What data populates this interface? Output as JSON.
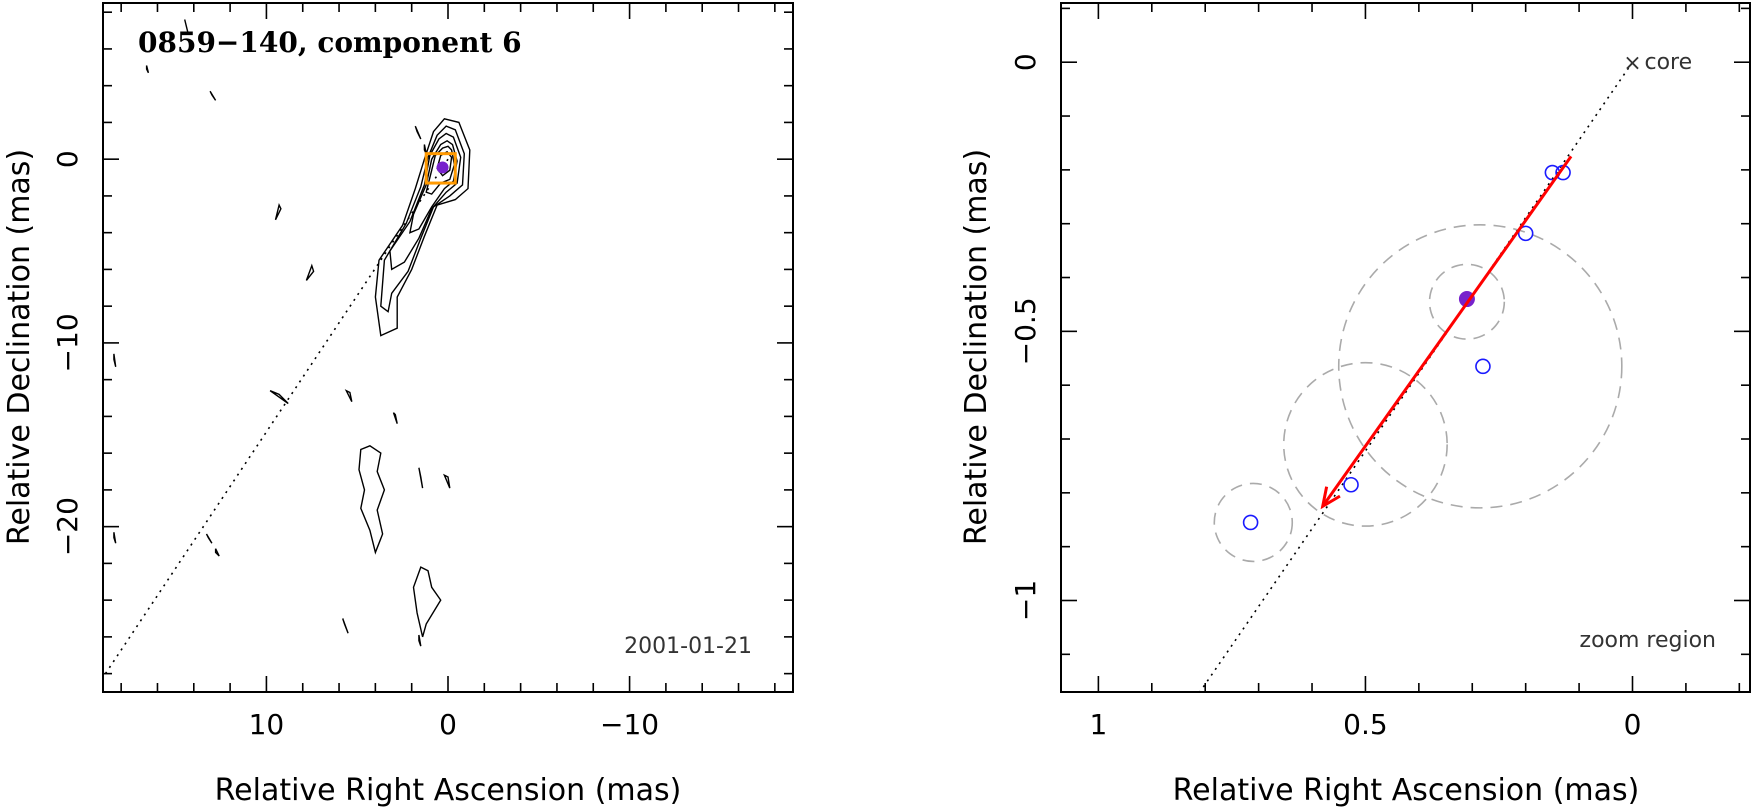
{
  "chart_data": [
    {
      "type": "contour",
      "title": "0859−140, component 6",
      "xlabel": "Relative Right Ascension (mas)",
      "ylabel": "Relative Declination (mas)",
      "xlim": [
        19,
        -19
      ],
      "ylim": [
        -29,
        8.5
      ],
      "xticks": [
        10,
        0,
        -10
      ],
      "xtick_labels": [
        "10",
        "0",
        "−10"
      ],
      "yticks": [
        0,
        -10,
        -20
      ],
      "ytick_labels": [
        "0",
        "−10",
        "−20"
      ],
      "date": "2001-01-21",
      "jet_axis_line": {
        "from": [
          0,
          0
        ],
        "to": [
          19,
          -28.2
        ]
      },
      "zoom_box": {
        "x": [
          1.2,
          -0.4
        ],
        "y": [
          -1.3,
          0.3
        ],
        "color": "#ff9900"
      },
      "marker": {
        "x": 0.3,
        "y": -0.45,
        "color": "#7722cc"
      },
      "contours": [
        [
          [
            0.2,
            2.2
          ],
          [
            -0.6,
            2.0
          ],
          [
            -1.2,
            0.5
          ],
          [
            -1.1,
            -1.6
          ],
          [
            -0.4,
            -2.2
          ],
          [
            0.6,
            -2.5
          ],
          [
            1.3,
            -4.2
          ],
          [
            2.0,
            -6.0
          ],
          [
            2.8,
            -7.5
          ],
          [
            2.8,
            -9.2
          ],
          [
            3.7,
            -9.6
          ],
          [
            4.0,
            -7.5
          ],
          [
            3.8,
            -5.5
          ],
          [
            2.5,
            -3.6
          ],
          [
            1.8,
            -1.6
          ],
          [
            1.3,
            0.0
          ],
          [
            0.8,
            1.5
          ],
          [
            0.2,
            2.2
          ]
        ],
        [
          [
            0.1,
            1.8
          ],
          [
            -0.4,
            1.6
          ],
          [
            -0.9,
            0.3
          ],
          [
            -0.8,
            -1.4
          ],
          [
            -0.1,
            -2.0
          ],
          [
            0.8,
            -2.6
          ],
          [
            1.5,
            -4.3
          ],
          [
            2.2,
            -6.1
          ],
          [
            3.1,
            -7.3
          ],
          [
            3.3,
            -8.3
          ],
          [
            3.7,
            -8.0
          ],
          [
            3.5,
            -5.5
          ],
          [
            2.3,
            -3.5
          ],
          [
            1.5,
            -1.5
          ],
          [
            1.1,
            0.1
          ],
          [
            0.6,
            1.3
          ],
          [
            0.1,
            1.8
          ]
        ],
        [
          [
            0.1,
            1.4
          ],
          [
            -0.3,
            1.2
          ],
          [
            -0.7,
            0.1
          ],
          [
            -0.5,
            -1.3
          ],
          [
            0.1,
            -1.8
          ],
          [
            0.9,
            -2.7
          ],
          [
            1.6,
            -4.3
          ],
          [
            2.4,
            -5.6
          ],
          [
            3.1,
            -6.0
          ],
          [
            3.2,
            -5.0
          ],
          [
            2.1,
            -3.4
          ],
          [
            1.3,
            -1.4
          ],
          [
            1.0,
            0.2
          ],
          [
            0.5,
            1.1
          ],
          [
            0.1,
            1.4
          ]
        ],
        [
          [
            0.05,
            1.0
          ],
          [
            -0.25,
            0.8
          ],
          [
            -0.5,
            -0.1
          ],
          [
            -0.3,
            -1.2
          ],
          [
            0.2,
            -1.6
          ],
          [
            0.9,
            -2.6
          ],
          [
            1.6,
            -3.8
          ],
          [
            2.1,
            -4.0
          ],
          [
            1.9,
            -3.0
          ],
          [
            1.2,
            -1.4
          ],
          [
            0.9,
            0.0
          ],
          [
            0.4,
            0.8
          ],
          [
            0.05,
            1.0
          ]
        ],
        [
          [
            0.0,
            0.7
          ],
          [
            -0.2,
            0.5
          ],
          [
            -0.35,
            -0.3
          ],
          [
            -0.1,
            -1.1
          ],
          [
            0.4,
            -1.3
          ],
          [
            0.9,
            -1.9
          ],
          [
            1.2,
            -1.8
          ],
          [
            0.9,
            -0.6
          ],
          [
            0.7,
            0.2
          ],
          [
            0.3,
            0.6
          ],
          [
            0.0,
            0.7
          ]
        ],
        [
          [
            0.05,
            0.4
          ],
          [
            -0.2,
            0.1
          ],
          [
            -0.1,
            -0.6
          ],
          [
            0.3,
            -0.9
          ],
          [
            0.6,
            -0.5
          ],
          [
            0.4,
            0.2
          ],
          [
            0.05,
            0.4
          ]
        ],
        [
          [
            4.8,
            -15.8
          ],
          [
            4.9,
            -16.9
          ],
          [
            4.6,
            -18.0
          ],
          [
            4.8,
            -19.0
          ],
          [
            4.3,
            -20.2
          ],
          [
            4.0,
            -21.4
          ],
          [
            3.6,
            -20.4
          ],
          [
            3.9,
            -19.1
          ],
          [
            3.5,
            -18.0
          ],
          [
            3.9,
            -17.0
          ],
          [
            3.7,
            -16.0
          ],
          [
            4.3,
            -15.6
          ],
          [
            4.8,
            -15.8
          ]
        ],
        [
          [
            1.5,
            -22.2
          ],
          [
            1.9,
            -23.3
          ],
          [
            1.7,
            -24.7
          ],
          [
            1.4,
            -26.0
          ],
          [
            1.2,
            -25.3
          ],
          [
            0.4,
            -24.0
          ],
          [
            0.9,
            -23.3
          ],
          [
            1.1,
            -22.4
          ],
          [
            1.5,
            -22.2
          ]
        ],
        [
          [
            1.6,
            -16.8
          ],
          [
            1.4,
            -17.9
          ],
          [
            1.5,
            -17.3
          ],
          [
            1.6,
            -16.8
          ]
        ],
        [
          [
            0.2,
            -17.2
          ],
          [
            -0.1,
            -17.9
          ],
          [
            0.0,
            -17.3
          ],
          [
            0.2,
            -17.2
          ]
        ],
        [
          [
            9.8,
            -12.6
          ],
          [
            8.8,
            -13.3
          ],
          [
            9.3,
            -12.8
          ],
          [
            9.8,
            -12.6
          ]
        ],
        [
          [
            5.6,
            -12.6
          ],
          [
            5.3,
            -13.2
          ],
          [
            5.4,
            -12.7
          ],
          [
            5.6,
            -12.6
          ]
        ],
        [
          [
            3.0,
            -13.8
          ],
          [
            2.8,
            -14.4
          ],
          [
            2.9,
            -13.9
          ],
          [
            3.0,
            -13.8
          ]
        ],
        [
          [
            9.3,
            -2.5
          ],
          [
            9.5,
            -3.3
          ],
          [
            9.2,
            -2.7
          ],
          [
            9.3,
            -2.5
          ]
        ],
        [
          [
            7.5,
            -5.8
          ],
          [
            7.8,
            -6.6
          ],
          [
            7.4,
            -6.1
          ],
          [
            7.5,
            -5.8
          ]
        ],
        [
          [
            13.1,
            3.7
          ],
          [
            12.8,
            3.2
          ],
          [
            13.0,
            3.5
          ],
          [
            13.1,
            3.7
          ]
        ],
        [
          [
            14.5,
            7.6
          ],
          [
            14.3,
            6.8
          ],
          [
            14.4,
            7.2
          ],
          [
            14.5,
            7.6
          ]
        ],
        [
          [
            16.6,
            5.1
          ],
          [
            16.5,
            4.7
          ],
          [
            16.6,
            4.9
          ],
          [
            16.6,
            5.1
          ]
        ],
        [
          [
            1.8,
            1.8
          ],
          [
            1.5,
            1.1
          ],
          [
            1.7,
            1.5
          ],
          [
            1.8,
            1.8
          ]
        ],
        [
          [
            1.3,
            0.8
          ],
          [
            1.2,
            0.3
          ],
          [
            1.3,
            0.5
          ],
          [
            1.3,
            0.8
          ]
        ],
        [
          [
            18.4,
            -10.6
          ],
          [
            18.3,
            -11.3
          ],
          [
            18.4,
            -10.9
          ],
          [
            18.4,
            -10.6
          ]
        ],
        [
          [
            13.3,
            -20.4
          ],
          [
            13.0,
            -20.9
          ],
          [
            13.2,
            -20.6
          ],
          [
            13.3,
            -20.4
          ]
        ],
        [
          [
            12.8,
            -21.2
          ],
          [
            12.6,
            -21.6
          ],
          [
            12.8,
            -21.4
          ],
          [
            12.8,
            -21.2
          ]
        ],
        [
          [
            5.8,
            -25.0
          ],
          [
            5.5,
            -25.8
          ],
          [
            5.7,
            -25.3
          ],
          [
            5.8,
            -25.0
          ]
        ],
        [
          [
            18.4,
            -20.3
          ],
          [
            18.3,
            -20.9
          ],
          [
            18.4,
            -20.6
          ],
          [
            18.4,
            -20.3
          ]
        ],
        [
          [
            1.6,
            -25.9
          ],
          [
            1.5,
            -26.5
          ],
          [
            1.6,
            -26.2
          ],
          [
            1.6,
            -25.9
          ]
        ]
      ]
    },
    {
      "type": "scatter",
      "xlabel": "Relative Right Ascension (mas)",
      "ylabel": "Relative Declination (mas)",
      "xlim": [
        1.07,
        -0.22
      ],
      "ylim": [
        -1.17,
        0.11
      ],
      "xticks": [
        1,
        0.5,
        0
      ],
      "xtick_labels": [
        "1",
        "0.5",
        "0"
      ],
      "yticks": [
        0,
        -0.5,
        -1
      ],
      "ytick_labels": [
        "0",
        "−0.5",
        "−1"
      ],
      "core_label": "core",
      "core": [
        0,
        0
      ],
      "region_label": "zoom region",
      "jet_axis_line": {
        "from": [
          0,
          0
        ],
        "to": [
          0.81,
          -1.17
        ]
      },
      "positions": [
        {
          "x": 0.715,
          "y": -0.855
        },
        {
          "x": 0.527,
          "y": -0.785
        },
        {
          "x": 0.28,
          "y": -0.565
        },
        {
          "x": 0.2,
          "y": -0.318
        },
        {
          "x": 0.15,
          "y": -0.205
        },
        {
          "x": 0.13,
          "y": -0.205
        }
      ],
      "mean_position": {
        "x": 0.31,
        "y": -0.44,
        "color": "#7722cc"
      },
      "error_circles": [
        {
          "x": 0.71,
          "y": -0.855,
          "r": 0.073
        },
        {
          "x": 0.5,
          "y": -0.71,
          "r": 0.153
        },
        {
          "x": 0.285,
          "y": -0.565,
          "r": 0.265
        },
        {
          "x": 0.31,
          "y": -0.445,
          "r": 0.07
        }
      ],
      "velocity_arrow": {
        "from": [
          0.115,
          -0.175
        ],
        "to": [
          0.58,
          -0.825
        ],
        "color": "#ff0000"
      },
      "positions_color": "#1a1aff"
    }
  ]
}
